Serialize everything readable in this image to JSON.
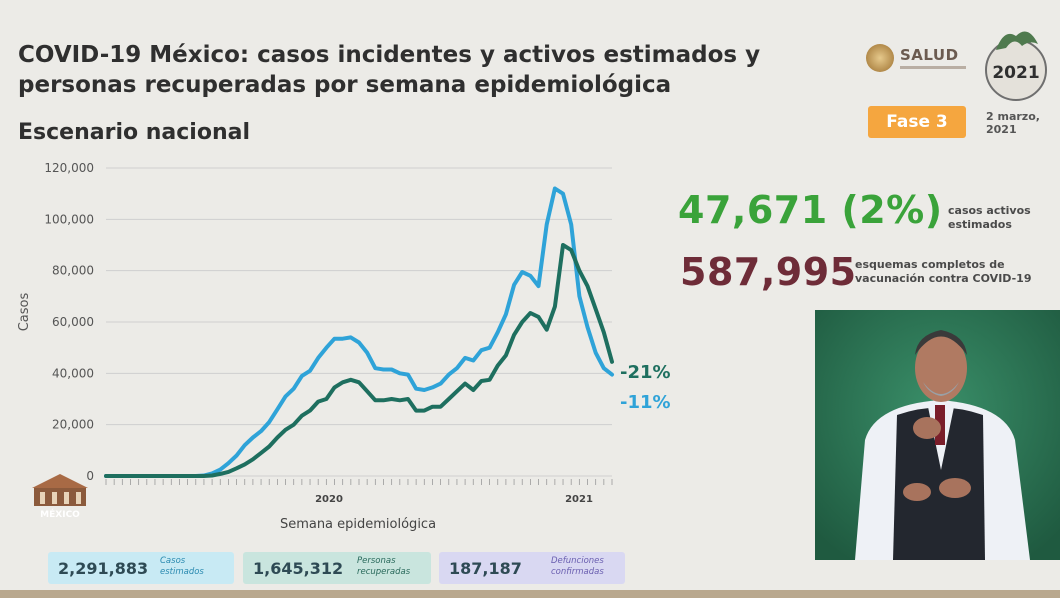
{
  "header": {
    "title": "COVID-19 México: casos incidentes y activos estimados y personas recuperadas por semana epidemiológica",
    "subtitle": "Escenario nacional",
    "logo_text": "SALUD",
    "logo_2021_text": "2021",
    "phase": "Fase 3",
    "date_line1": "2 marzo,",
    "date_line2": "2021"
  },
  "stats": {
    "active_value": "47,671 (2%)",
    "active_label_line1": "casos activos",
    "active_label_line2": "estimados",
    "vacc_value": "587,995",
    "vacc_label_line1": "esquemas completos de",
    "vacc_label_line2": "vacunación contra COVID-19"
  },
  "chart_data": {
    "type": "line",
    "ylabel": "Casos",
    "xlabel": "Semana epidemiológica",
    "ylim": [
      0,
      120000
    ],
    "yticks": [
      "0",
      "20,000",
      "40,000",
      "60,000",
      "80,000",
      "100,000",
      "120,000"
    ],
    "year_labels": [
      "2020",
      "2021"
    ],
    "x": [
      1,
      2,
      3,
      4,
      5,
      6,
      7,
      8,
      9,
      10,
      11,
      12,
      13,
      14,
      15,
      16,
      17,
      18,
      19,
      20,
      21,
      22,
      23,
      24,
      25,
      26,
      27,
      28,
      29,
      30,
      31,
      32,
      33,
      34,
      35,
      36,
      37,
      38,
      39,
      40,
      41,
      42,
      43,
      44,
      45,
      46,
      47,
      48,
      49,
      50,
      51,
      52,
      53,
      54,
      55,
      56,
      57,
      58,
      59,
      60,
      61,
      62,
      63
    ],
    "series": [
      {
        "color": "#2fa3d8",
        "end_label": "-11%",
        "values": [
          0,
          0,
          0,
          0,
          0,
          0,
          0,
          0,
          0,
          0,
          0,
          0,
          200,
          1000,
          2500,
          5000,
          8000,
          12000,
          15000,
          17500,
          21000,
          26000,
          31000,
          34000,
          39000,
          41000,
          46000,
          50000,
          53500,
          53500,
          54000,
          52000,
          48000,
          42000,
          41500,
          41500,
          40000,
          39500,
          34000,
          33500,
          34500,
          36000,
          39500,
          42000,
          46000,
          45000,
          49000,
          50000,
          56000,
          63000,
          74500,
          79500,
          78000,
          74000,
          98000,
          112000,
          110000,
          98000,
          70000,
          58000,
          48000,
          42000,
          39500
        ]
      },
      {
        "color": "#1e6f5f",
        "end_label": "-21%",
        "values": [
          0,
          0,
          0,
          0,
          0,
          0,
          0,
          0,
          0,
          0,
          0,
          0,
          0,
          200,
          800,
          1600,
          3000,
          4500,
          6500,
          9000,
          11500,
          15000,
          18000,
          20000,
          23500,
          25500,
          29000,
          30000,
          34500,
          36500,
          37500,
          36500,
          33000,
          29500,
          29500,
          30000,
          29500,
          30000,
          25500,
          25500,
          27000,
          27000,
          30000,
          33000,
          36000,
          33500,
          37000,
          37500,
          43000,
          47000,
          55000,
          60000,
          63500,
          62000,
          57000,
          66000,
          90000,
          88000,
          80000,
          74000,
          65000,
          56000,
          44500
        ]
      }
    ],
    "grid": true
  },
  "totals": {
    "casos_value": "2,291,883",
    "casos_label_line1": "Casos",
    "casos_label_line2": "estimados",
    "recup_value": "1,645,312",
    "recup_label_line1": "Personas",
    "recup_label_line2": "recuperadas",
    "def_value": "187,187",
    "def_label_line1": "Defunciones",
    "def_label_line2": "confirmadas"
  },
  "gov_logo_text": "MÉXICO",
  "colors": {
    "active_green": "#3aa33a",
    "vacc_maroon": "#6e2c38",
    "phase_orange": "#f5a63f"
  }
}
